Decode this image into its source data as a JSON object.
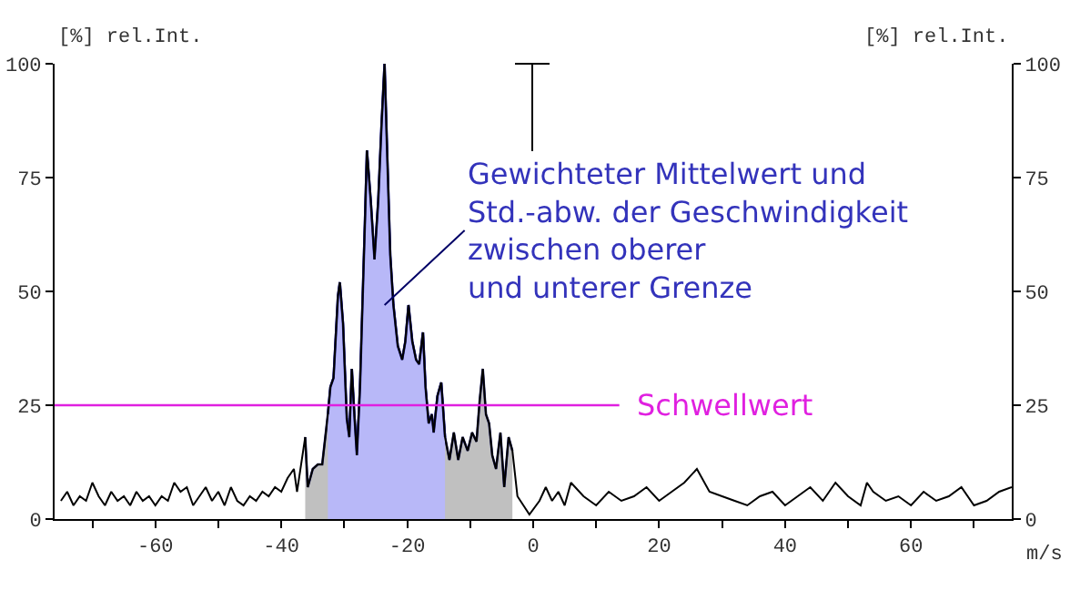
{
  "chart_data": {
    "type": "line",
    "xlabel": "m/s",
    "ylabel": "[%] rel.Int.",
    "y2label": "[%] rel.Int.",
    "xlim": [
      -76,
      76
    ],
    "xticks": [
      {
        "value": -70,
        "label": null
      },
      -60,
      {
        "value": -50,
        "label": null
      },
      -40,
      {
        "value": -30,
        "label": null
      },
      -20,
      {
        "value": -10,
        "label": null
      },
      0,
      {
        "value": 10,
        "label": null
      },
      20,
      {
        "value": 30,
        "label": null
      },
      40,
      {
        "value": 50,
        "label": null
      },
      60,
      {
        "value": 70,
        "label": null
      }
    ],
    "ylim": [
      0,
      100
    ],
    "yticks": [
      0,
      25,
      50,
      75,
      100
    ],
    "y2lim": [
      0,
      100
    ],
    "y2ticks": [
      0,
      25,
      50,
      75,
      100
    ],
    "grid": false,
    "marker": "none",
    "line_style": "solid",
    "series": [
      {
        "type": "area",
        "color": "#c0c0c0",
        "x": [
          -36.2,
          -35.8,
          -35.0,
          -34.2,
          -33.5,
          -32.6,
          -32.2,
          -31.7,
          -31.0,
          -30.7,
          -30.2,
          -29.6,
          -29.2,
          -28.8,
          -28.4,
          -28.0,
          -27.5,
          -26.7,
          -26.4,
          -25.8,
          -25.2,
          -24.6,
          -24.1,
          -23.6,
          -23.2,
          -22.7,
          -22.2,
          -21.5,
          -20.8,
          -20.3,
          -19.8,
          -19.2,
          -18.6,
          -18.1,
          -17.5,
          -17.1,
          -16.6,
          -16.1,
          -15.8,
          -15.2,
          -14.6,
          -14.0,
          -13.3,
          -12.6,
          -11.9,
          -11.2,
          -10.4,
          -9.7,
          -9.0,
          -8.5,
          -8.0,
          -7.5,
          -7.0,
          -6.5,
          -5.9,
          -5.2,
          -4.6,
          -3.9,
          -3.3
        ],
        "values": [
          18,
          7,
          11,
          12,
          12,
          23,
          29,
          31,
          49,
          52,
          43,
          22,
          18,
          33,
          23,
          14,
          29,
          66,
          81,
          70,
          57,
          70,
          86,
          100,
          81,
          58,
          47,
          38,
          35,
          39,
          47,
          39,
          35,
          34,
          41,
          29,
          21,
          23,
          19,
          27,
          30,
          18,
          13,
          19,
          13,
          18,
          15,
          19,
          17,
          26,
          33,
          23,
          21,
          14,
          11,
          19,
          7,
          18,
          15
        ]
      },
      {
        "type": "area",
        "color": "#b8b8f8",
        "x": [
          -32.6,
          -32.2,
          -31.7,
          -31.0,
          -30.7,
          -30.2,
          -29.6,
          -29.2,
          -28.8,
          -28.4,
          -28.0,
          -27.5,
          -26.7,
          -26.4,
          -25.8,
          -25.2,
          -24.6,
          -24.1,
          -23.6,
          -23.2,
          -22.7,
          -22.2,
          -21.5,
          -20.8,
          -20.3,
          -19.8,
          -19.2,
          -18.6,
          -18.1,
          -17.5,
          -17.1,
          -16.6,
          -16.1,
          -15.8,
          -15.2,
          -14.6,
          -14.0
        ],
        "values": [
          23,
          29,
          31,
          49,
          52,
          43,
          22,
          18,
          33,
          23,
          14,
          29,
          66,
          81,
          70,
          57,
          70,
          86,
          100,
          81,
          58,
          47,
          38,
          35,
          39,
          47,
          39,
          35,
          34,
          41,
          29,
          21,
          23,
          19,
          27,
          30,
          18
        ]
      },
      {
        "color": "#000000",
        "x": [
          -75,
          -74,
          -73,
          -72,
          -71,
          -70,
          -69,
          -68,
          -67,
          -66,
          -65,
          -64,
          -63,
          -62,
          -61,
          -60,
          -59,
          -58,
          -57,
          -56,
          -55,
          -54,
          -53,
          -52,
          -51,
          -50,
          -49,
          -48,
          -47,
          -46,
          -45,
          -44,
          -43,
          -42,
          -41,
          -40,
          -39,
          -38,
          -37.5,
          -36.2,
          -35.8,
          -35.0,
          -34.2,
          -33.5,
          -32.6,
          -32.2,
          -31.7,
          -31.0,
          -30.7,
          -30.2,
          -29.6,
          -29.2,
          -28.8,
          -28.4,
          -28.0,
          -27.5,
          -26.7,
          -26.4,
          -25.8,
          -25.2,
          -24.6,
          -24.1,
          -23.6,
          -23.2,
          -22.7,
          -22.2,
          -21.5,
          -20.8,
          -20.3,
          -19.8,
          -19.2,
          -18.6,
          -18.1,
          -17.5,
          -17.1,
          -16.6,
          -16.1,
          -15.8,
          -15.2,
          -14.6,
          -14.0,
          -13.3,
          -12.6,
          -11.9,
          -11.2,
          -10.4,
          -9.7,
          -9.0,
          -8.5,
          -8.0,
          -7.5,
          -7.0,
          -6.5,
          -5.9,
          -5.2,
          -4.6,
          -3.9,
          -3.3,
          -2.5,
          -0.6,
          1,
          2,
          3,
          4,
          5,
          6,
          8,
          10,
          12,
          14,
          16,
          18,
          20,
          22,
          24,
          26,
          28,
          30,
          32,
          34,
          36,
          38,
          40,
          42,
          44,
          46,
          48,
          50,
          52,
          53,
          54,
          56,
          58,
          60,
          62,
          64,
          66,
          68,
          70,
          72,
          74,
          76
        ],
        "values": [
          4,
          6,
          3,
          5,
          4,
          8,
          5,
          3,
          6,
          4,
          5,
          3,
          6,
          4,
          5,
          3,
          5,
          4,
          8,
          6,
          7,
          3,
          5,
          7,
          4,
          6,
          3,
          7,
          4,
          3,
          5,
          4,
          6,
          5,
          7,
          6,
          9,
          11,
          6,
          18,
          7,
          11,
          12,
          12,
          23,
          29,
          31,
          49,
          52,
          43,
          22,
          18,
          33,
          23,
          14,
          29,
          66,
          81,
          70,
          57,
          70,
          86,
          100,
          81,
          58,
          47,
          38,
          35,
          39,
          47,
          39,
          35,
          34,
          41,
          29,
          21,
          23,
          19,
          27,
          30,
          18,
          13,
          19,
          13,
          18,
          15,
          19,
          17,
          26,
          33,
          23,
          21,
          14,
          11,
          19,
          7,
          18,
          15,
          5,
          1,
          4,
          7,
          4,
          6,
          3,
          8,
          5,
          3,
          6,
          4,
          5,
          7,
          4,
          6,
          8,
          11,
          6,
          5,
          4,
          3,
          5,
          6,
          3,
          5,
          7,
          4,
          8,
          5,
          3,
          8,
          6,
          4,
          5,
          3,
          6,
          4,
          5,
          7,
          3,
          4,
          6,
          7
        ]
      }
    ],
    "ref_lines": [
      {
        "axis": "y",
        "value": 25,
        "label": "Schwellwert",
        "color": "#e020e0"
      }
    ],
    "annotations": [
      {
        "text": "Gewichteter Mittelwert und\nStd.-abw. der Geschwindigkeit\nzwischen oberer\nund unterer Grenze",
        "x": -23.6,
        "y": 47
      }
    ]
  }
}
